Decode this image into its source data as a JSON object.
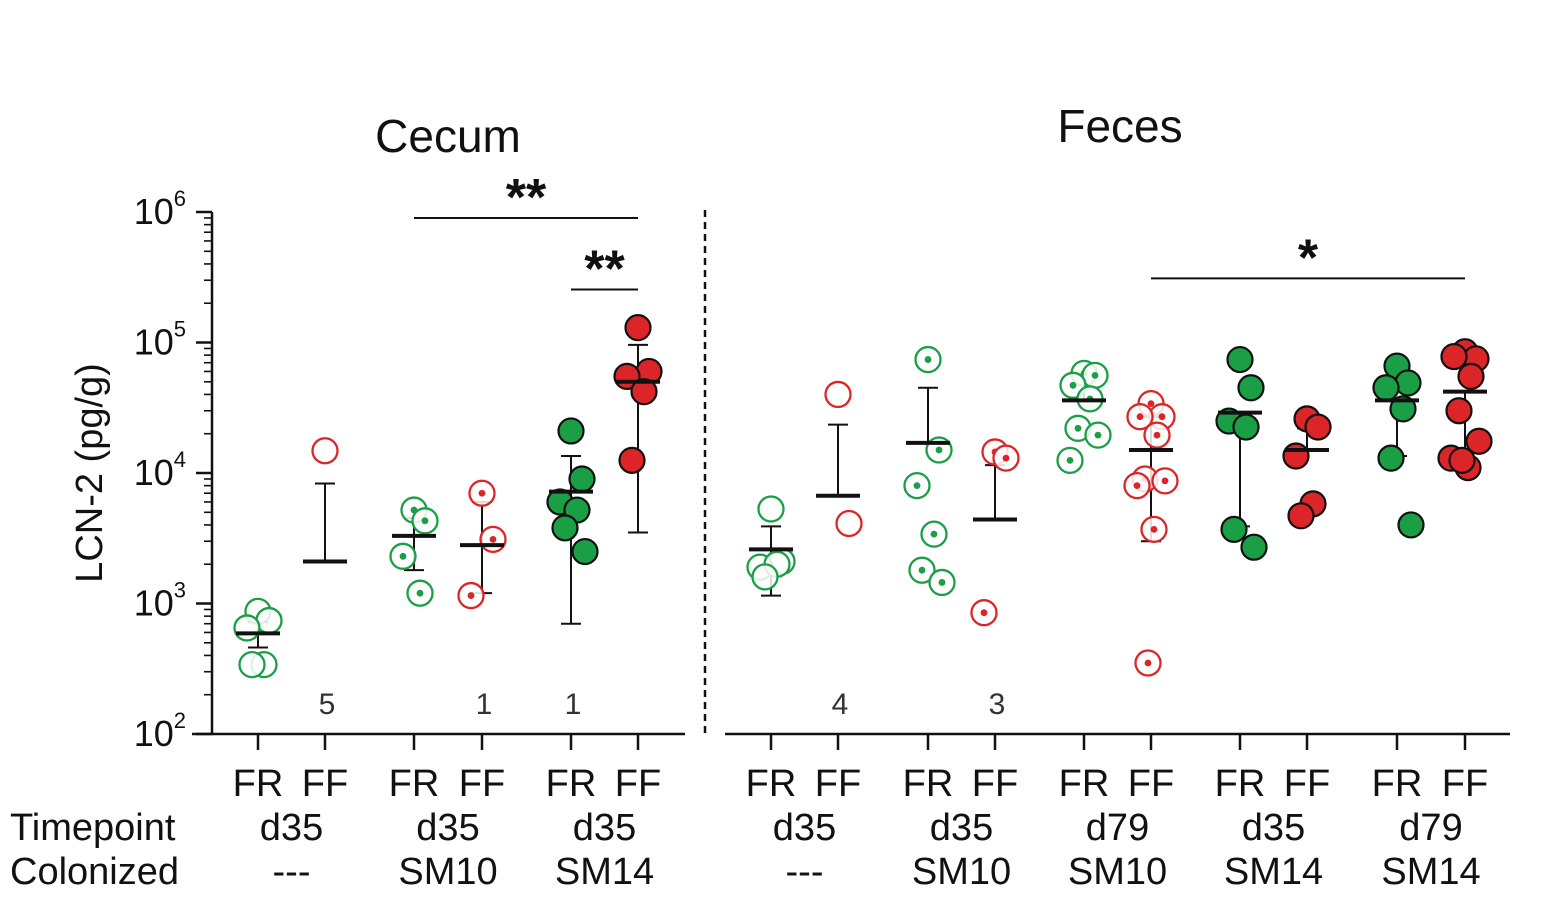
{
  "chart_data": {
    "type": "scatter",
    "yscale": "log",
    "ylim": [
      100,
      1000000
    ],
    "ylabel": "LCN-2 (pg/g)",
    "yticks": [
      {
        "base": "10",
        "exp": "2",
        "value": 100
      },
      {
        "base": "10",
        "exp": "3",
        "value": 1000
      },
      {
        "base": "10",
        "exp": "4",
        "value": 10000
      },
      {
        "base": "10",
        "exp": "5",
        "value": 100000
      },
      {
        "base": "10",
        "exp": "6",
        "value": 1000000
      }
    ],
    "colors": {
      "FR": "#1a9e46",
      "FF": "#dc2528",
      "axis": "#111111"
    },
    "row_labels": {
      "timepoint": "Timepoint",
      "colonized": "Colonized"
    },
    "panels": [
      {
        "title": "Cecum",
        "groups": [
          {
            "label": "FR",
            "timepoint": "d35",
            "colonized": "---",
            "diet": "FR",
            "style": "open",
            "values": [
              870,
              740,
              650,
              340,
              340
            ],
            "mean": 590,
            "sd_low": 460,
            "sd_high": 720,
            "below_detection": ""
          },
          {
            "label": "FF",
            "timepoint": "d35",
            "colonized": "---",
            "diet": "FF",
            "style": "open",
            "values": [
              14800
            ],
            "mean": 2100,
            "sd_low": 2100,
            "sd_high": 8300,
            "below_detection": "5"
          },
          {
            "label": "FR",
            "timepoint": "d35",
            "colonized": "SM10",
            "diet": "FR",
            "style": "dot",
            "values": [
              5200,
              4300,
              2300,
              1200
            ],
            "mean": 3300,
            "sd_low": 1800,
            "sd_high": 4500,
            "below_detection": ""
          },
          {
            "label": "FF",
            "timepoint": "d35",
            "colonized": "SM10",
            "diet": "FF",
            "style": "dot",
            "values": [
              7000,
              3100,
              1150
            ],
            "mean": 2800,
            "sd_low": 1200,
            "sd_high": 6000,
            "below_detection": "1"
          },
          {
            "label": "FR",
            "timepoint": "d35",
            "colonized": "SM14",
            "diet": "FR",
            "style": "filled",
            "values": [
              21000,
              9000,
              6000,
              5200,
              3800,
              2500
            ],
            "mean": 7200,
            "sd_low": 700,
            "sd_high": 13500,
            "below_detection": "1"
          },
          {
            "label": "FF",
            "timepoint": "d35",
            "colonized": "SM14",
            "diet": "FF",
            "style": "filled",
            "values": [
              130000,
              60000,
              55000,
              42000,
              12500
            ],
            "mean": 50000,
            "sd_low": 3500,
            "sd_high": 96000,
            "below_detection": ""
          }
        ],
        "significance": [
          {
            "from": 2,
            "to": 5,
            "label": "**",
            "y": 900000
          },
          {
            "from": 4,
            "to": 5,
            "label": "**",
            "y": 255000
          }
        ]
      },
      {
        "title": "Feces",
        "groups": [
          {
            "label": "FR",
            "timepoint": "d35",
            "colonized": "---",
            "diet": "FR",
            "style": "open",
            "values": [
              5300,
              2100,
              1900,
              2000,
              1600
            ],
            "mean": 2600,
            "sd_low": 1150,
            "sd_high": 3900,
            "below_detection": ""
          },
          {
            "label": "FF",
            "timepoint": "d35",
            "colonized": "---",
            "diet": "FF",
            "style": "open",
            "values": [
              40000,
              4100
            ],
            "mean": 6700,
            "sd_low": 6700,
            "sd_high": 23500,
            "below_detection": "4"
          },
          {
            "label": "FR",
            "timepoint": "d35",
            "colonized": "SM10",
            "diet": "FR",
            "style": "dot",
            "values": [
              74000,
              15000,
              8000,
              3400,
              1800,
              1450
            ],
            "mean": 17000,
            "sd_low": 17000,
            "sd_high": 45000,
            "below_detection": ""
          },
          {
            "label": "FF",
            "timepoint": "d35",
            "colonized": "SM10",
            "diet": "FF",
            "style": "dot",
            "values": [
              14500,
              13000,
              850
            ],
            "mean": 4400,
            "sd_low": 4400,
            "sd_high": 11500,
            "below_detection": "3"
          },
          {
            "label": "FR",
            "timepoint": "d79",
            "colonized": "SM10",
            "diet": "FR",
            "style": "dot",
            "values": [
              58000,
              56000,
              47000,
              37000,
              22000,
              19500,
              12500
            ],
            "mean": 36000,
            "sd_low": 36000,
            "sd_high": 52000,
            "below_detection": ""
          },
          {
            "label": "FF",
            "timepoint": "d79",
            "colonized": "SM10",
            "diet": "FF",
            "style": "dot",
            "values": [
              34000,
              27000,
              27000,
              19500,
              9000,
              8700,
              8000,
              3700,
              350
            ],
            "mean": 15000,
            "sd_low": 3000,
            "sd_high": 27000,
            "below_detection": ""
          },
          {
            "label": "FR",
            "timepoint": "d35",
            "colonized": "SM14",
            "diet": "FR",
            "style": "filled",
            "values": [
              74000,
              45000,
              25000,
              22500,
              3700,
              2700
            ],
            "mean": 29000,
            "sd_low": 3900,
            "sd_high": 29000,
            "below_detection": ""
          },
          {
            "label": "FF",
            "timepoint": "d35",
            "colonized": "SM14",
            "diet": "FF",
            "style": "filled",
            "values": [
              26000,
              22500,
              13500,
              5800,
              4700
            ],
            "mean": 15000,
            "sd_low": 15000,
            "sd_high": 22000,
            "below_detection": ""
          },
          {
            "label": "FR",
            "timepoint": "d79",
            "colonized": "SM14",
            "diet": "FR",
            "style": "filled",
            "values": [
              66000,
              49000,
              45000,
              31000,
              13000,
              4000
            ],
            "mean": 36000,
            "sd_low": 13500,
            "sd_high": 36000,
            "below_detection": ""
          },
          {
            "label": "FF",
            "timepoint": "d79",
            "colonized": "SM14",
            "diet": "FF",
            "style": "filled",
            "values": [
              85000,
              75000,
              78000,
              55000,
              30000,
              17500,
              13000,
              11000,
              12500
            ],
            "mean": 42000,
            "sd_low": 12000,
            "sd_high": 42000,
            "below_detection": ""
          }
        ],
        "significance": [
          {
            "from": 5,
            "to": 9,
            "label": "*",
            "y": 310000
          }
        ]
      }
    ]
  }
}
